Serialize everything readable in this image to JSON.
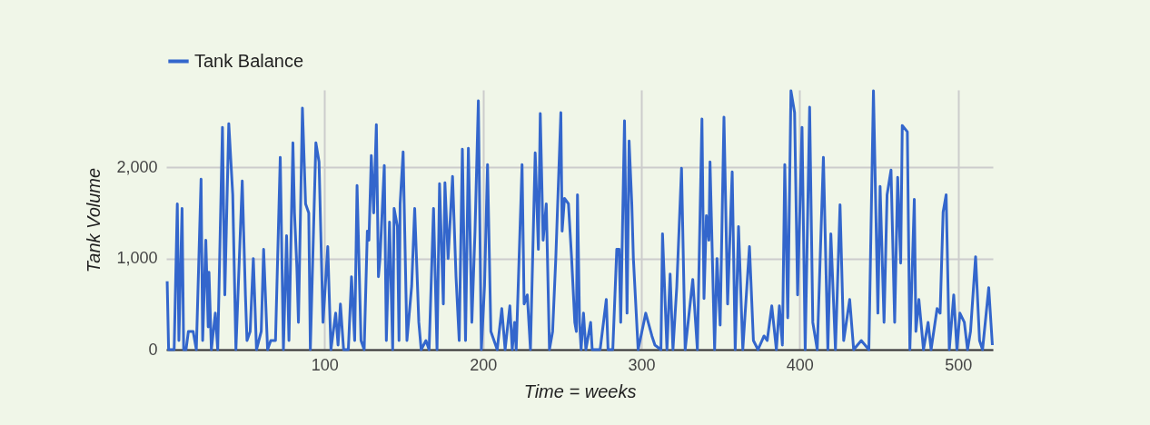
{
  "chart_data": {
    "type": "line",
    "xlabel": "Time = weeks",
    "ylabel": "Tank Volume",
    "legend": "top left",
    "grid": true,
    "marker": "none",
    "line_style": "solid",
    "xlim": [
      0,
      522
    ],
    "xticks": [
      100,
      200,
      300,
      400,
      500
    ],
    "ylim": [
      0,
      2850
    ],
    "yticks": [
      {
        "value": 0,
        "label": "0"
      },
      {
        "value": 1000,
        "label": "1,000"
      },
      {
        "value": 2000,
        "label": "2,000"
      }
    ],
    "x": [
      0.6,
      1.5,
      5,
      7,
      8,
      10,
      11,
      12.5,
      14,
      17,
      19,
      22,
      23,
      25,
      26.5,
      27,
      28.5,
      31,
      32.5,
      35.5,
      37,
      39.5,
      42,
      44,
      48,
      50,
      51,
      53,
      55,
      57,
      60,
      61.5,
      64,
      66,
      69,
      72,
      74,
      76,
      77.5,
      80,
      81,
      82.5,
      83.5,
      86,
      88,
      90,
      91,
      94.5,
      96.5,
      99,
      102,
      104,
      107,
      108.5,
      110,
      112,
      115,
      117,
      119,
      120.5,
      123,
      125,
      127,
      128,
      129.5,
      131,
      132.7,
      134,
      135,
      137.7,
      139,
      141,
      143,
      143.9,
      146,
      147,
      147.7,
      149.6,
      152,
      155,
      156.9,
      159.5,
      161,
      164,
      166,
      168.8,
      171,
      172.6,
      175,
      176,
      178,
      180.8,
      183,
      185,
      187,
      189,
      190.8,
      193,
      195,
      197.1,
      199,
      201,
      202.9,
      205,
      207,
      209,
      211.9,
      214,
      217,
      218.5,
      220,
      221,
      224.7,
      226,
      228,
      230,
      233,
      235,
      236.2,
      238,
      240,
      242,
      244,
      246,
      249.2,
      250,
      251.5,
      254,
      256,
      258,
      259,
      259.7,
      261,
      262,
      263.5,
      265,
      268,
      269,
      274,
      277.9,
      279,
      282,
      284.5,
      286,
      287,
      289.4,
      291,
      292.3,
      294,
      295,
      298,
      302.8,
      306.7,
      308.6,
      312.4,
      313.4,
      316.2,
      318.2,
      320,
      322.4,
      325.4,
      327.7,
      332.5,
      335.4,
      338.3,
      339.6,
      341.1,
      342.7,
      343.4,
      346.3,
      347.8,
      349.8,
      352.2,
      354.5,
      357.4,
      359.3,
      361.4,
      364.1,
      368.3,
      370.8,
      373.7,
      377.5,
      379.5,
      382.4,
      385.3,
      387.2,
      389.1,
      390.6,
      392.5,
      394.5,
      396.8,
      398.7,
      401.5,
      403.5,
      406.3,
      408.3,
      411.1,
      415,
      417.8,
      419.7,
      422.6,
      425.5,
      427.8,
      431.6,
      434.1,
      438.9,
      443.7,
      446.6,
      449.4,
      450.8,
      453.3,
      455.2,
      457.7,
      460,
      461.9,
      463.8,
      464.8,
      468,
      469.6,
      472.4,
      473.4,
      475.3,
      478.2,
      481.1,
      483,
      486.8,
      488.7,
      490.6,
      492.5,
      494.5,
      497.3,
      499.3,
      501.2,
      504,
      506,
      507.9,
      511.1,
      513.6,
      515.5,
      519.4,
      521.7
    ],
    "series": [
      {
        "name": "Tank Balance",
        "color": "#3366cc",
        "values": [
          750,
          0,
          0,
          1600,
          100,
          1550,
          0,
          0,
          200,
          200,
          0,
          1870,
          100,
          1200,
          250,
          850,
          0,
          400,
          0,
          2440,
          600,
          2480,
          1700,
          0,
          1850,
          600,
          100,
          200,
          1000,
          0,
          200,
          1100,
          0,
          100,
          100,
          2110,
          0,
          1250,
          100,
          2270,
          1500,
          900,
          300,
          2650,
          1600,
          1500,
          0,
          2270,
          2060,
          300,
          1130,
          0,
          400,
          50,
          500,
          0,
          0,
          800,
          100,
          1800,
          100,
          0,
          1300,
          1200,
          2130,
          1500,
          2470,
          800,
          1000,
          2020,
          100,
          1400,
          0,
          1550,
          1350,
          100,
          1600,
          2170,
          100,
          700,
          1550,
          300,
          0,
          100,
          0,
          1550,
          0,
          1820,
          500,
          1830,
          1000,
          1900,
          800,
          100,
          2200,
          100,
          2210,
          300,
          1300,
          2730,
          0,
          700,
          2030,
          200,
          100,
          0,
          450,
          0,
          480,
          0,
          300,
          0,
          2030,
          500,
          600,
          0,
          2160,
          1100,
          2590,
          1200,
          1600,
          0,
          200,
          1000,
          2600,
          1300,
          1660,
          1600,
          1000,
          300,
          200,
          1700,
          300,
          0,
          400,
          0,
          300,
          0,
          0,
          550,
          0,
          0,
          1100,
          1100,
          300,
          2510,
          400,
          2290,
          1600,
          1000,
          0,
          400,
          150,
          50,
          0,
          1270,
          0,
          830,
          0,
          690,
          1990,
          0,
          770,
          0,
          2530,
          560,
          1470,
          1200,
          2060,
          0,
          1000,
          270,
          2550,
          500,
          1950,
          0,
          1350,
          0,
          1130,
          100,
          0,
          150,
          100,
          480,
          0,
          480,
          50,
          2030,
          350,
          2840,
          2600,
          600,
          2440,
          0,
          2660,
          300,
          0,
          2110,
          0,
          1270,
          0,
          1590,
          100,
          550,
          0,
          100,
          0,
          2840,
          400,
          1790,
          300,
          1700,
          1970,
          300,
          1890,
          950,
          2460,
          2390,
          0,
          1650,
          200,
          550,
          0,
          300,
          0,
          450,
          400,
          1510,
          1700,
          0,
          600,
          0,
          400,
          300,
          0,
          200,
          1020,
          100,
          0,
          680,
          50
        ]
      }
    ]
  }
}
